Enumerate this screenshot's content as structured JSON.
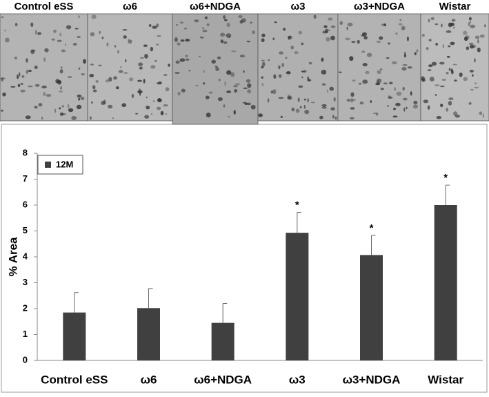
{
  "panels": [
    "Control eSS",
    "ω6",
    "ω6+NDGA",
    "ω3",
    "ω3+NDGA",
    "Wistar"
  ],
  "chart_data": {
    "type": "bar",
    "y_label": "% Area",
    "categories": [
      "Control eSS",
      "ω6",
      "ω6+NDGA",
      "ω3",
      "ω3+NDGA",
      "Wistar"
    ],
    "series": [
      {
        "name": "12M",
        "color": "#404040",
        "values": [
          1.85,
          2.02,
          1.45,
          4.93,
          4.07,
          6.0
        ],
        "errors": [
          0.77,
          0.76,
          0.75,
          0.79,
          0.76,
          0.77
        ]
      }
    ],
    "significance": [
      null,
      null,
      null,
      "*",
      "*",
      "*"
    ],
    "ylim": [
      0,
      8
    ],
    "yticks": [
      0,
      1,
      2,
      3,
      4,
      5,
      6,
      7,
      8
    ],
    "legend": "top-left"
  }
}
